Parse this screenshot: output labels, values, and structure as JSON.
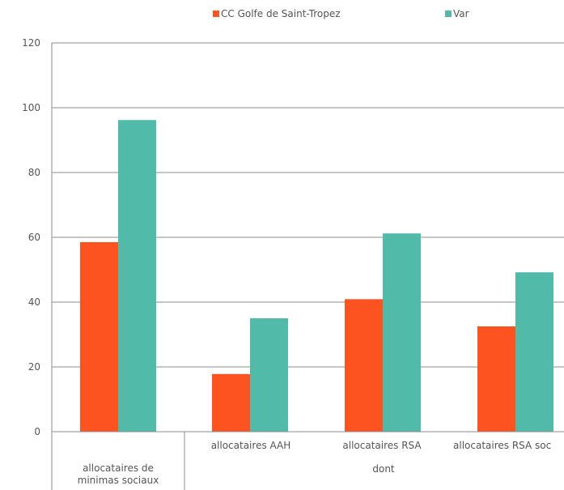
{
  "chart_data": {
    "type": "bar",
    "legend_position": "top",
    "grid": true,
    "ylim": [
      0,
      120
    ],
    "yticks": [
      "0",
      "20",
      "40",
      "60",
      "80",
      "100",
      "120"
    ],
    "categories": [
      "allocataires de minimas sociaux",
      "allocataires AAH",
      "allocataires RSA",
      "allocataires RSA soc"
    ],
    "category_lines": [
      [
        "allocataires de",
        "minimas sociaux"
      ],
      [
        "allocataires AAH"
      ],
      [
        "allocataires RSA"
      ],
      [
        "allocataires RSA soc"
      ]
    ],
    "group_label": "dont",
    "series": [
      {
        "name": "CC Golfe de Saint-Tropez",
        "color": "#fc5320",
        "values": [
          58.5,
          17.8,
          40.9,
          32.5
        ]
      },
      {
        "name": "Var",
        "color": "#52baa9",
        "values": [
          96.2,
          35.0,
          61.2,
          49.2
        ]
      }
    ]
  }
}
